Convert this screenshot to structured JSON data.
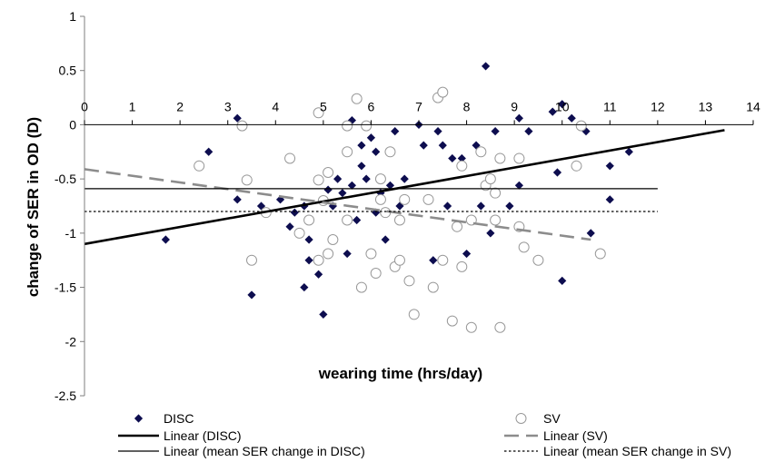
{
  "chart_data": {
    "type": "scatter",
    "xlabel": "wearing time (hrs/day)",
    "ylabel": "change of SER in OD (D)",
    "xlim": [
      0,
      14
    ],
    "ylim": [
      -2.5,
      1
    ],
    "x_ticks": [
      "0",
      "1",
      "2",
      "3",
      "4",
      "5",
      "6",
      "7",
      "8",
      "9",
      "10",
      "11",
      "12",
      "13",
      "14"
    ],
    "y_ticks": [
      "1",
      "0.5",
      "0",
      "-0.5",
      "-1",
      "-1.5",
      "-2",
      "-2.5"
    ],
    "grid": false,
    "series": [
      {
        "name": "DISC",
        "marker": "diamond",
        "color": "#0d0d4f",
        "points": [
          [
            1.7,
            -1.06
          ],
          [
            2.6,
            -0.25
          ],
          [
            3.2,
            0.06
          ],
          [
            3.2,
            -0.69
          ],
          [
            3.5,
            -1.57
          ],
          [
            3.7,
            -0.75
          ],
          [
            4.1,
            -0.69
          ],
          [
            4.3,
            -0.94
          ],
          [
            4.4,
            -0.81
          ],
          [
            4.6,
            -0.75
          ],
          [
            4.6,
            -1.5
          ],
          [
            4.7,
            -1.25
          ],
          [
            4.7,
            -1.06
          ],
          [
            4.9,
            -1.38
          ],
          [
            5.0,
            -1.75
          ],
          [
            5.0,
            -0.69
          ],
          [
            5.1,
            -0.6
          ],
          [
            5.2,
            -0.75
          ],
          [
            5.2,
            -1.06
          ],
          [
            5.3,
            -0.5
          ],
          [
            5.4,
            -0.63
          ],
          [
            5.5,
            -1.19
          ],
          [
            5.6,
            -0.56
          ],
          [
            5.6,
            0.04
          ],
          [
            5.7,
            -0.88
          ],
          [
            5.8,
            -0.38
          ],
          [
            5.8,
            -0.19
          ],
          [
            5.9,
            -0.5
          ],
          [
            6.0,
            -0.12
          ],
          [
            6.1,
            -0.81
          ],
          [
            6.1,
            -0.25
          ],
          [
            6.2,
            -0.63
          ],
          [
            6.3,
            -1.06
          ],
          [
            6.4,
            -0.56
          ],
          [
            6.5,
            -0.06
          ],
          [
            6.6,
            -0.75
          ],
          [
            6.7,
            -0.5
          ],
          [
            7.0,
            0.0
          ],
          [
            7.1,
            -0.19
          ],
          [
            7.2,
            -0.69
          ],
          [
            7.3,
            -1.25
          ],
          [
            7.4,
            -0.06
          ],
          [
            7.5,
            -0.19
          ],
          [
            7.6,
            -0.75
          ],
          [
            7.7,
            -0.31
          ],
          [
            7.8,
            -0.94
          ],
          [
            7.9,
            -0.31
          ],
          [
            8.0,
            -1.19
          ],
          [
            8.2,
            -0.19
          ],
          [
            8.3,
            -0.75
          ],
          [
            8.4,
            0.54
          ],
          [
            8.5,
            -1.0
          ],
          [
            8.6,
            -0.06
          ],
          [
            8.9,
            -0.75
          ],
          [
            9.1,
            -0.56
          ],
          [
            9.1,
            0.06
          ],
          [
            9.3,
            -0.06
          ],
          [
            9.8,
            0.12
          ],
          [
            9.9,
            -0.44
          ],
          [
            10.0,
            -1.44
          ],
          [
            10.0,
            0.19
          ],
          [
            10.2,
            0.06
          ],
          [
            10.5,
            -0.06
          ],
          [
            10.6,
            -1.0
          ],
          [
            11.0,
            -0.38
          ],
          [
            11.0,
            -0.69
          ],
          [
            11.4,
            -0.25
          ]
        ]
      },
      {
        "name": "SV",
        "marker": "circle",
        "color": "#999999",
        "points": [
          [
            2.4,
            -0.38
          ],
          [
            3.3,
            -0.01
          ],
          [
            3.4,
            -0.51
          ],
          [
            3.5,
            -1.25
          ],
          [
            3.8,
            -0.81
          ],
          [
            4.3,
            -0.31
          ],
          [
            4.5,
            -1.0
          ],
          [
            4.7,
            -0.88
          ],
          [
            4.9,
            0.11
          ],
          [
            4.9,
            -0.51
          ],
          [
            4.9,
            -1.25
          ],
          [
            5.0,
            -0.7
          ],
          [
            5.1,
            -0.44
          ],
          [
            5.1,
            -1.19
          ],
          [
            5.2,
            -1.06
          ],
          [
            5.5,
            -0.88
          ],
          [
            5.5,
            -0.01
          ],
          [
            5.5,
            -0.25
          ],
          [
            5.7,
            0.24
          ],
          [
            5.8,
            -1.5
          ],
          [
            5.9,
            -0.01
          ],
          [
            6.0,
            -1.19
          ],
          [
            6.1,
            -1.37
          ],
          [
            6.2,
            -0.5
          ],
          [
            6.2,
            -0.69
          ],
          [
            6.3,
            -0.81
          ],
          [
            6.4,
            -0.25
          ],
          [
            6.5,
            -1.31
          ],
          [
            6.6,
            -1.25
          ],
          [
            6.6,
            -0.88
          ],
          [
            6.7,
            -0.69
          ],
          [
            6.8,
            -1.44
          ],
          [
            6.9,
            -1.75
          ],
          [
            7.2,
            -0.69
          ],
          [
            7.3,
            -1.5
          ],
          [
            7.4,
            0.25
          ],
          [
            7.5,
            -1.25
          ],
          [
            7.5,
            0.3
          ],
          [
            7.7,
            -1.81
          ],
          [
            7.8,
            -0.94
          ],
          [
            7.9,
            -1.31
          ],
          [
            7.9,
            -0.38
          ],
          [
            8.1,
            -0.88
          ],
          [
            8.1,
            -1.87
          ],
          [
            8.3,
            -0.25
          ],
          [
            8.4,
            -0.56
          ],
          [
            8.5,
            -0.5
          ],
          [
            8.6,
            -0.63
          ],
          [
            8.6,
            -0.88
          ],
          [
            8.7,
            -0.31
          ],
          [
            8.7,
            -1.87
          ],
          [
            9.1,
            -0.94
          ],
          [
            9.1,
            -0.31
          ],
          [
            9.2,
            -1.13
          ],
          [
            9.5,
            -1.25
          ],
          [
            10.3,
            -0.38
          ],
          [
            10.4,
            -0.01
          ],
          [
            10.8,
            -1.19
          ]
        ]
      }
    ],
    "lines": [
      {
        "name": "Linear (DISC)",
        "x": [
          0,
          13.4
        ],
        "y": [
          -1.1,
          -0.05
        ],
        "style": "solid-thick",
        "color": "#000000"
      },
      {
        "name": "Linear (SV)",
        "x": [
          0,
          10.6
        ],
        "y": [
          -0.41,
          -1.06
        ],
        "style": "dashed-long",
        "color": "#8c8c8c"
      },
      {
        "name": "Linear (mean SER change in DISC)",
        "x": [
          0,
          12
        ],
        "y": [
          -0.59,
          -0.59
        ],
        "style": "solid-thin",
        "color": "#000000"
      },
      {
        "name": "Linear (mean SER change in SV)",
        "x": [
          0,
          12
        ],
        "y": [
          -0.8,
          -0.8
        ],
        "style": "dotted",
        "color": "#000000"
      }
    ],
    "legend": {
      "placement": "bottom",
      "entries": [
        "DISC",
        "SV",
        "Linear (DISC)",
        "Linear (SV)",
        "Linear (mean SER change in DISC)",
        "Linear (mean SER change in SV)"
      ]
    }
  }
}
